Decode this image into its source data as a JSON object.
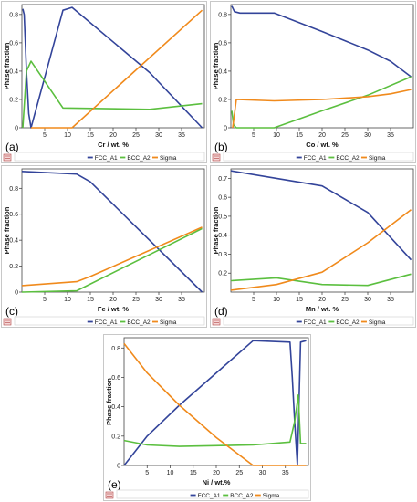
{
  "colors": {
    "FCC_A1": "#33449a",
    "BCC_A2": "#5bbf3f",
    "Sigma": "#f08a1c"
  },
  "legend": [
    "FCC_A1",
    "BCC_A2",
    "Sigma"
  ],
  "chart_data": [
    {
      "type": "line",
      "panel_label": "(a)",
      "xlabel": "Cr / wt. %",
      "ylabel": "Phase fraction",
      "xlim": [
        0,
        40
      ],
      "ylim": [
        0,
        0.87
      ],
      "xticks": [
        5,
        10,
        15,
        20,
        25,
        30,
        35
      ],
      "yticks": [
        0,
        0.2,
        0.4,
        0.6,
        0.8
      ],
      "series": [
        {
          "name": "FCC_A1",
          "points": [
            [
              0.2,
              0.84
            ],
            [
              0.5,
              0.8
            ],
            [
              1,
              0.4
            ],
            [
              1.5,
              0.1
            ],
            [
              2,
              0
            ],
            [
              9,
              0.83
            ],
            [
              11,
              0.85
            ],
            [
              28,
              0.39
            ],
            [
              39.5,
              0
            ]
          ]
        },
        {
          "name": "BCC_A2",
          "points": [
            [
              0.2,
              0
            ],
            [
              0.6,
              0.2
            ],
            [
              1,
              0.4
            ],
            [
              2,
              0.47
            ],
            [
              9,
              0.14
            ],
            [
              28,
              0.13
            ],
            [
              39.5,
              0.17
            ]
          ]
        },
        {
          "name": "Sigma",
          "points": [
            [
              2,
              0
            ],
            [
              11,
              0
            ],
            [
              39.5,
              0.83
            ]
          ]
        }
      ]
    },
    {
      "type": "line",
      "panel_label": "(b)",
      "xlabel": "Co / wt. %",
      "ylabel": "Phase fraction",
      "xlim": [
        0,
        40
      ],
      "ylim": [
        0,
        0.87
      ],
      "xticks": [
        5,
        10,
        15,
        20,
        25,
        30,
        35
      ],
      "yticks": [
        0,
        0.2,
        0.4,
        0.6,
        0.8
      ],
      "series": [
        {
          "name": "FCC_A1",
          "points": [
            [
              0.2,
              0.86
            ],
            [
              0.8,
              0.82
            ],
            [
              2,
              0.81
            ],
            [
              9.5,
              0.81
            ],
            [
              20,
              0.68
            ],
            [
              30,
              0.55
            ],
            [
              35,
              0.47
            ],
            [
              39.5,
              0.36
            ]
          ]
        },
        {
          "name": "BCC_A2",
          "points": [
            [
              0.2,
              0.12
            ],
            [
              0.6,
              0.02
            ],
            [
              1.2,
              0
            ],
            [
              9.5,
              0
            ],
            [
              20,
              0.12
            ],
            [
              30,
              0.23
            ],
            [
              39.5,
              0.36
            ]
          ]
        },
        {
          "name": "Sigma",
          "points": [
            [
              0.4,
              0
            ],
            [
              1.2,
              0.2
            ],
            [
              9.5,
              0.19
            ],
            [
              20,
              0.2
            ],
            [
              30,
              0.22
            ],
            [
              35,
              0.24
            ],
            [
              39.5,
              0.27
            ]
          ]
        }
      ]
    },
    {
      "type": "line",
      "panel_label": "(c)",
      "xlabel": "Fe / wt. %",
      "ylabel": "Phase fraction",
      "xlim": [
        0,
        40
      ],
      "ylim": [
        0,
        0.95
      ],
      "xticks": [
        5,
        10,
        15,
        20,
        25,
        30,
        35
      ],
      "yticks": [
        0,
        0.2,
        0.4,
        0.6,
        0.8
      ],
      "series": [
        {
          "name": "FCC_A1",
          "points": [
            [
              0,
              0.93
            ],
            [
              12,
              0.91
            ],
            [
              15,
              0.85
            ],
            [
              39.5,
              0
            ]
          ]
        },
        {
          "name": "BCC_A2",
          "points": [
            [
              0,
              0
            ],
            [
              12,
              0.01
            ],
            [
              39.5,
              0.49
            ]
          ]
        },
        {
          "name": "Sigma",
          "points": [
            [
              0,
              0.05
            ],
            [
              12,
              0.08
            ],
            [
              15,
              0.12
            ],
            [
              39.5,
              0.5
            ]
          ]
        }
      ]
    },
    {
      "type": "line",
      "panel_label": "(d)",
      "xlabel": "Mn / wt. %",
      "ylabel": "Phase fraction",
      "xlim": [
        0,
        40
      ],
      "ylim": [
        0.1,
        0.75
      ],
      "xticks": [
        5,
        10,
        15,
        20,
        25,
        30,
        35
      ],
      "yticks": [
        0.2,
        0.3,
        0.4,
        0.5,
        0.6,
        0.7
      ],
      "series": [
        {
          "name": "FCC_A1",
          "points": [
            [
              0,
              0.74
            ],
            [
              10,
              0.7
            ],
            [
              20,
              0.66
            ],
            [
              30,
              0.52
            ],
            [
              39.5,
              0.27
            ]
          ]
        },
        {
          "name": "BCC_A2",
          "points": [
            [
              0,
              0.16
            ],
            [
              10,
              0.175
            ],
            [
              20,
              0.14
            ],
            [
              30,
              0.135
            ],
            [
              39.5,
              0.195
            ]
          ]
        },
        {
          "name": "Sigma",
          "points": [
            [
              0,
              0.11
            ],
            [
              10,
              0.14
            ],
            [
              20,
              0.205
            ],
            [
              30,
              0.36
            ],
            [
              39.5,
              0.535
            ]
          ]
        }
      ]
    },
    {
      "type": "line",
      "panel_label": "(e)",
      "xlabel": "Ni / wt.%",
      "ylabel": "Phase fraction",
      "xlim": [
        0,
        40
      ],
      "ylim": [
        0,
        0.87
      ],
      "xticks": [
        5,
        10,
        15,
        20,
        25,
        30,
        35
      ],
      "yticks": [
        0,
        0.2,
        0.4,
        0.6,
        0.8
      ],
      "series": [
        {
          "name": "FCC_A1",
          "points": [
            [
              0,
              0
            ],
            [
              5,
              0.2
            ],
            [
              12,
              0.41
            ],
            [
              20,
              0.63
            ],
            [
              28,
              0.85
            ],
            [
              36,
              0.84
            ],
            [
              36.5,
              0.6
            ],
            [
              37,
              0.3
            ],
            [
              37.6,
              0
            ],
            [
              38.3,
              0.84
            ],
            [
              39.5,
              0.85
            ]
          ]
        },
        {
          "name": "BCC_A2",
          "points": [
            [
              0,
              0.17
            ],
            [
              5,
              0.14
            ],
            [
              12,
              0.13
            ],
            [
              28,
              0.14
            ],
            [
              36,
              0.16
            ],
            [
              37,
              0.3
            ],
            [
              37.8,
              0.48
            ],
            [
              38.3,
              0.15
            ],
            [
              39.5,
              0.15
            ]
          ]
        },
        {
          "name": "Sigma",
          "points": [
            [
              0,
              0.83
            ],
            [
              5,
              0.63
            ],
            [
              12,
              0.41
            ],
            [
              20,
              0.19
            ],
            [
              28,
              0
            ],
            [
              39.5,
              0
            ]
          ]
        }
      ]
    }
  ]
}
